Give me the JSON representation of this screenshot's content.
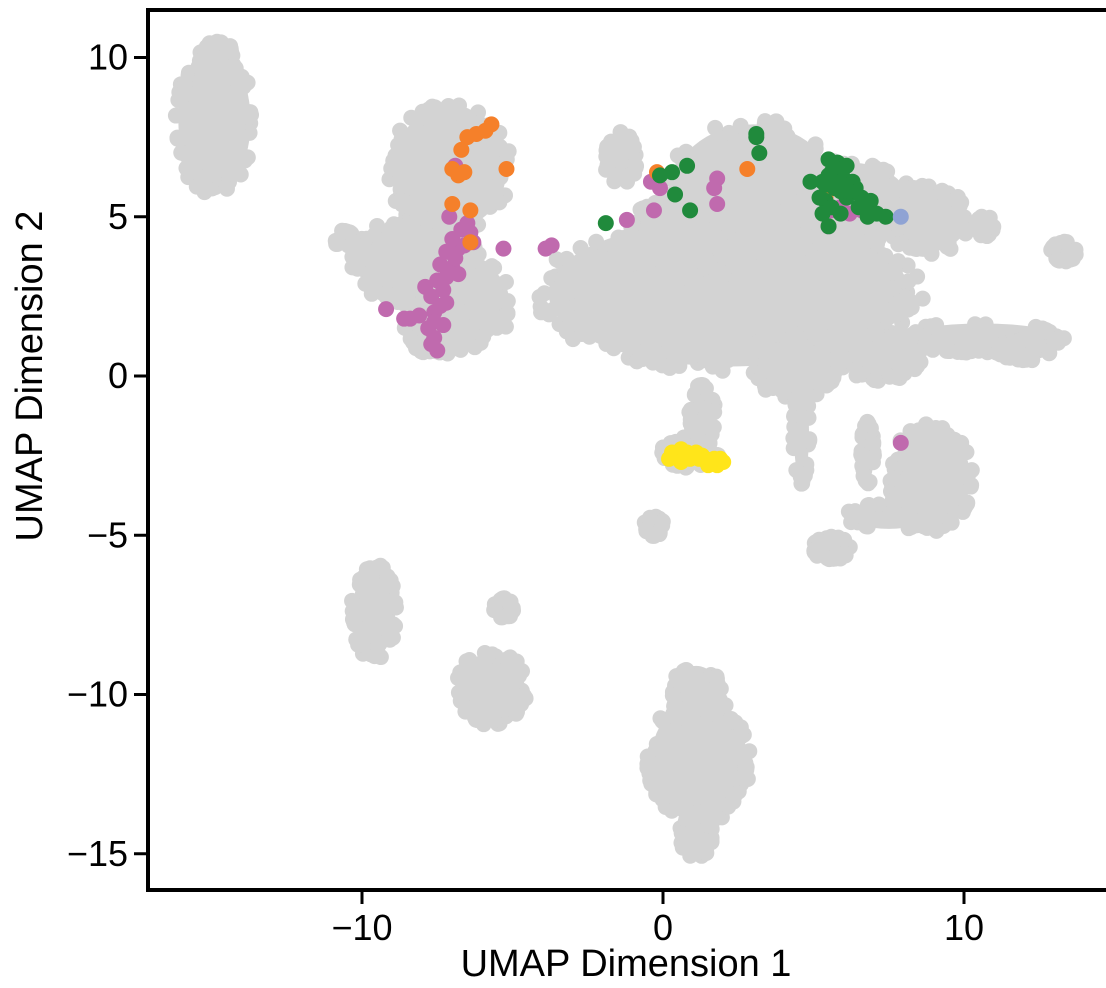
{
  "chart_data": {
    "type": "scatter",
    "title": "",
    "xlabel": "UMAP Dimension 1",
    "ylabel": "UMAP Dimension 2",
    "xlim": [
      -17,
      14.5
    ],
    "ylim": [
      -16.2,
      11.5
    ],
    "x_ticks": [
      -10,
      0,
      10
    ],
    "y_ticks": [
      -15,
      -10,
      -5,
      0,
      5,
      10
    ],
    "x_tick_labels": [
      "−10",
      "0",
      "10"
    ],
    "y_tick_labels": [
      "−15",
      "−10",
      "−5",
      "0",
      "5",
      "10"
    ],
    "grid": false,
    "legend": "none",
    "background_clusters": {
      "color": "#d3d3d3",
      "blobs": [
        {
          "cx": -14.9,
          "cy": 8.0,
          "rx": 1.2,
          "ry": 2.2
        },
        {
          "cx": -14.8,
          "cy": 9.8,
          "rx": 0.6,
          "ry": 0.7
        },
        {
          "cx": -7.1,
          "cy": 6.5,
          "rx": 1.9,
          "ry": 1.9
        },
        {
          "cx": -8.2,
          "cy": 3.6,
          "rx": 2.0,
          "ry": 1.3
        },
        {
          "cx": -6.8,
          "cy": 2.3,
          "rx": 1.7,
          "ry": 1.4
        },
        {
          "cx": -7.5,
          "cy": 1.5,
          "rx": 1.0,
          "ry": 0.8
        },
        {
          "cx": 2.2,
          "cy": 2.6,
          "rx": 6.0,
          "ry": 2.3
        },
        {
          "cx": 3.0,
          "cy": 5.6,
          "rx": 2.8,
          "ry": 2.3
        },
        {
          "cx": 0.5,
          "cy": 4.3,
          "rx": 1.6,
          "ry": 1.3
        },
        {
          "cx": -1.4,
          "cy": 6.8,
          "rx": 0.5,
          "ry": 0.8
        },
        {
          "cx": 6.2,
          "cy": 5.4,
          "rx": 2.0,
          "ry": 1.3
        },
        {
          "cx": 8.8,
          "cy": 4.9,
          "rx": 1.3,
          "ry": 1.0
        },
        {
          "cx": 10.6,
          "cy": 1.2,
          "rx": 2.6,
          "ry": 0.45
        },
        {
          "cx": 12.0,
          "cy": 0.8,
          "rx": 0.9,
          "ry": 0.3
        },
        {
          "cx": 4.4,
          "cy": 0.4,
          "rx": 1.5,
          "ry": 1.0
        },
        {
          "cx": 7.2,
          "cy": 0.6,
          "rx": 1.3,
          "ry": 0.7
        },
        {
          "cx": 0.9,
          "cy": -2.4,
          "rx": 0.9,
          "ry": 0.45
        },
        {
          "cx": 1.3,
          "cy": -1.2,
          "rx": 0.4,
          "ry": 0.9
        },
        {
          "cx": 8.9,
          "cy": -3.2,
          "rx": 1.3,
          "ry": 1.6
        },
        {
          "cx": 7.5,
          "cy": -4.4,
          "rx": 1.3,
          "ry": 0.4
        },
        {
          "cx": 5.6,
          "cy": -5.4,
          "rx": 0.6,
          "ry": 0.35
        },
        {
          "cx": 4.6,
          "cy": -1.8,
          "rx": 0.25,
          "ry": 1.5
        },
        {
          "cx": 6.8,
          "cy": -2.4,
          "rx": 0.2,
          "ry": 0.9
        },
        {
          "cx": -0.3,
          "cy": -4.7,
          "rx": 0.3,
          "ry": 0.3
        },
        {
          "cx": -9.6,
          "cy": -7.4,
          "rx": 0.7,
          "ry": 1.4
        },
        {
          "cx": -5.7,
          "cy": -9.8,
          "rx": 1.1,
          "ry": 1.1
        },
        {
          "cx": -5.3,
          "cy": -7.3,
          "rx": 0.3,
          "ry": 0.3
        },
        {
          "cx": 1.2,
          "cy": -12.1,
          "rx": 1.6,
          "ry": 1.9
        },
        {
          "cx": 1.1,
          "cy": -10.0,
          "rx": 0.8,
          "ry": 0.9
        },
        {
          "cx": 1.1,
          "cy": -14.4,
          "rx": 0.5,
          "ry": 0.7
        },
        {
          "cx": 13.3,
          "cy": 3.9,
          "rx": 0.4,
          "ry": 0.3
        },
        {
          "cx": 10.7,
          "cy": 4.7,
          "rx": 0.3,
          "ry": 0.3
        },
        {
          "cx": -10.6,
          "cy": 4.3,
          "rx": 0.3,
          "ry": 0.25
        }
      ]
    },
    "series": [
      {
        "color": "#e6a0c4",
        "points": []
      },
      {
        "color": "#c06aae",
        "points": [
          [
            -7.5,
            0.8
          ],
          [
            -7.6,
            1.2
          ],
          [
            -7.8,
            1.5
          ],
          [
            -7.3,
            1.6
          ],
          [
            -7.6,
            2.0
          ],
          [
            -7.4,
            2.2
          ],
          [
            -7.7,
            2.5
          ],
          [
            -7.3,
            2.7
          ],
          [
            -7.5,
            3.0
          ],
          [
            -7.2,
            3.1
          ],
          [
            -7.0,
            3.4
          ],
          [
            -7.4,
            3.5
          ],
          [
            -6.9,
            3.7
          ],
          [
            -7.2,
            3.9
          ],
          [
            -6.8,
            4.0
          ],
          [
            -7.0,
            4.3
          ],
          [
            -6.6,
            4.1
          ],
          [
            -6.7,
            4.6
          ],
          [
            -6.4,
            4.5
          ],
          [
            -6.5,
            4.8
          ],
          [
            -8.1,
            1.9
          ],
          [
            -8.4,
            1.8
          ],
          [
            -7.9,
            2.8
          ],
          [
            -7.7,
            1.0
          ],
          [
            -8.6,
            1.8
          ],
          [
            -9.2,
            2.1
          ],
          [
            -6.9,
            6.6
          ],
          [
            -7.1,
            5.0
          ],
          [
            -6.3,
            4.2
          ],
          [
            -6.8,
            3.2
          ],
          [
            -7.2,
            2.3
          ],
          [
            -7.6,
            1.7
          ],
          [
            -3.9,
            4.0
          ],
          [
            -5.3,
            4.0
          ],
          [
            -3.7,
            4.1
          ],
          [
            -0.3,
            5.2
          ],
          [
            -1.2,
            4.9
          ],
          [
            -0.1,
            5.9
          ],
          [
            -0.4,
            6.1
          ],
          [
            1.8,
            6.2
          ],
          [
            1.7,
            5.9
          ],
          [
            1.8,
            5.4
          ],
          [
            5.5,
            4.7
          ],
          [
            5.6,
            5.2
          ],
          [
            5.9,
            5.3
          ],
          [
            6.2,
            5.1
          ],
          [
            6.6,
            5.2
          ],
          [
            7.9,
            -2.1
          ]
        ]
      },
      {
        "color": "#f5802a",
        "points": [
          [
            -5.7,
            7.9
          ],
          [
            -5.9,
            7.7
          ],
          [
            -6.2,
            7.6
          ],
          [
            -6.5,
            7.5
          ],
          [
            -6.7,
            7.1
          ],
          [
            -7.0,
            6.5
          ],
          [
            -6.8,
            6.3
          ],
          [
            -6.6,
            6.4
          ],
          [
            -7.0,
            5.4
          ],
          [
            -6.4,
            5.2
          ],
          [
            -6.4,
            4.2
          ],
          [
            -5.2,
            6.5
          ],
          [
            -0.2,
            6.4
          ],
          [
            2.8,
            6.5
          ],
          [
            5.4,
            5.6
          ]
        ]
      },
      {
        "color": "#208a3c",
        "points": [
          [
            -1.9,
            4.8
          ],
          [
            -0.1,
            6.3
          ],
          [
            0.3,
            6.4
          ],
          [
            0.8,
            6.6
          ],
          [
            0.4,
            5.7
          ],
          [
            0.9,
            5.2
          ],
          [
            3.1,
            7.6
          ],
          [
            3.2,
            7.0
          ],
          [
            3.1,
            7.5
          ],
          [
            5.3,
            6.1
          ],
          [
            5.6,
            6.4
          ],
          [
            5.8,
            6.7
          ],
          [
            5.5,
            6.8
          ],
          [
            6.0,
            6.2
          ],
          [
            5.7,
            5.9
          ],
          [
            6.1,
            5.6
          ],
          [
            5.4,
            5.5
          ],
          [
            5.9,
            5.8
          ],
          [
            6.3,
            6.1
          ],
          [
            5.6,
            5.3
          ],
          [
            5.2,
            5.6
          ],
          [
            6.6,
            5.6
          ],
          [
            6.4,
            5.9
          ],
          [
            6.9,
            5.5
          ],
          [
            7.1,
            5.1
          ],
          [
            7.4,
            5.0
          ],
          [
            6.8,
            5.0
          ],
          [
            5.5,
            4.7
          ],
          [
            5.8,
            6.5
          ],
          [
            6.1,
            6.6
          ],
          [
            5.7,
            6.1
          ],
          [
            5.4,
            6.0
          ],
          [
            6.5,
            5.3
          ],
          [
            5.9,
            5.1
          ],
          [
            6.2,
            5.8
          ],
          [
            5.3,
            5.1
          ],
          [
            6.0,
            6.0
          ],
          [
            5.5,
            6.3
          ],
          [
            6.7,
            5.4
          ],
          [
            4.9,
            6.1
          ]
        ]
      },
      {
        "color": "#8fa3d4",
        "points": [
          [
            7.9,
            5.0
          ]
        ]
      },
      {
        "color": "#ffe51a",
        "points": [
          [
            0.2,
            -2.6
          ],
          [
            0.4,
            -2.5
          ],
          [
            0.6,
            -2.3
          ],
          [
            0.8,
            -2.4
          ],
          [
            1.0,
            -2.5
          ],
          [
            1.2,
            -2.6
          ],
          [
            1.4,
            -2.6
          ],
          [
            1.6,
            -2.7
          ],
          [
            1.8,
            -2.8
          ],
          [
            2.0,
            -2.7
          ],
          [
            0.5,
            -2.6
          ],
          [
            0.9,
            -2.6
          ],
          [
            1.3,
            -2.5
          ],
          [
            1.7,
            -2.6
          ],
          [
            0.3,
            -2.4
          ],
          [
            0.7,
            -2.5
          ],
          [
            1.5,
            -2.8
          ],
          [
            1.1,
            -2.4
          ],
          [
            1.9,
            -2.6
          ],
          [
            0.6,
            -2.7
          ]
        ]
      }
    ]
  }
}
